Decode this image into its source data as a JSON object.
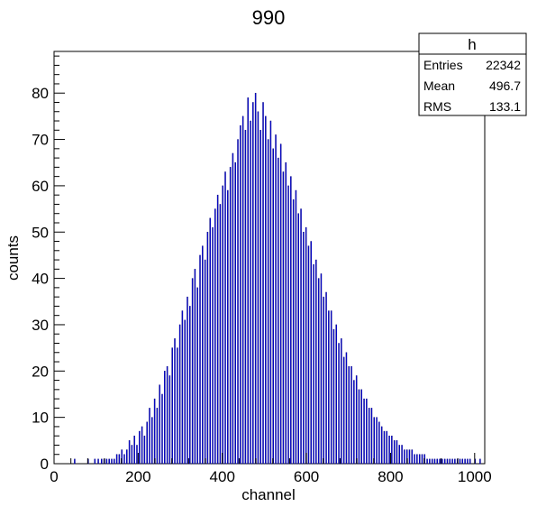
{
  "chart_data": {
    "type": "bar",
    "title": "990",
    "xlabel": "channel",
    "ylabel": "counts",
    "xlim": [
      0,
      1024
    ],
    "ylim": [
      0,
      89
    ],
    "x_ticks": [
      "0",
      "200",
      "400",
      "600",
      "800",
      "1000"
    ],
    "y_ticks": [
      "0",
      "10",
      "20",
      "30",
      "40",
      "50",
      "60",
      "70",
      "80"
    ],
    "grid": false,
    "bar_color": "#0000ff",
    "outline_color": "#000080",
    "series": [
      {
        "bin_width": 1,
        "x": [
          48,
          80,
          96,
          104,
          112,
          118,
          124,
          130,
          136,
          142,
          148,
          154,
          160,
          166,
          172,
          178,
          184,
          190,
          196,
          202,
          208,
          214,
          220,
          226,
          232,
          238,
          244,
          250,
          256,
          262,
          268,
          274,
          280,
          286,
          292,
          298,
          304,
          310,
          316,
          322,
          328,
          334,
          340,
          346,
          352,
          358,
          364,
          370,
          376,
          382,
          388,
          394,
          400,
          406,
          412,
          418,
          424,
          430,
          436,
          442,
          448,
          454,
          460,
          466,
          472,
          478,
          484,
          490,
          496,
          502,
          508,
          514,
          520,
          526,
          532,
          538,
          544,
          550,
          556,
          562,
          568,
          574,
          580,
          586,
          592,
          598,
          604,
          610,
          616,
          622,
          628,
          634,
          640,
          646,
          652,
          658,
          664,
          670,
          676,
          682,
          688,
          694,
          700,
          706,
          712,
          718,
          724,
          730,
          736,
          742,
          748,
          754,
          760,
          766,
          772,
          778,
          784,
          790,
          796,
          802,
          808,
          814,
          820,
          826,
          832,
          838,
          844,
          850,
          856,
          862,
          868,
          874,
          880,
          886,
          892,
          898,
          904,
          910,
          916,
          922,
          928,
          934,
          940,
          946,
          952,
          958,
          964,
          970,
          976,
          982,
          988,
          1000,
          1012
        ],
        "values": [
          1,
          1,
          1,
          1,
          1,
          1,
          1,
          1,
          1,
          1,
          2,
          2,
          3,
          2,
          3,
          5,
          4,
          6,
          4,
          7,
          8,
          6,
          9,
          12,
          10,
          14,
          12,
          17,
          15,
          20,
          21,
          19,
          25,
          27,
          25,
          30,
          33,
          31,
          36,
          34,
          40,
          42,
          38,
          45,
          47,
          44,
          50,
          53,
          51,
          55,
          58,
          56,
          60,
          63,
          59,
          64,
          67,
          65,
          70,
          73,
          75,
          72,
          79,
          74,
          78,
          80,
          76,
          72,
          78,
          75,
          70,
          74,
          68,
          71,
          66,
          69,
          63,
          65,
          60,
          62,
          57,
          59,
          54,
          55,
          50,
          51,
          47,
          48,
          43,
          44,
          40,
          41,
          36,
          37,
          33,
          33,
          29,
          30,
          26,
          27,
          23,
          24,
          21,
          21,
          18,
          19,
          16,
          16,
          14,
          14,
          12,
          12,
          10,
          10,
          9,
          8,
          7,
          7,
          6,
          6,
          5,
          5,
          4,
          4,
          3,
          3,
          3,
          3,
          2,
          2,
          2,
          2,
          2,
          1,
          1,
          1,
          1,
          1,
          1,
          1,
          1,
          1,
          1,
          1,
          1,
          1,
          1,
          1,
          1,
          1,
          1,
          1,
          1
        ]
      }
    ],
    "stats_box": {
      "title": "h",
      "rows": [
        {
          "label": "Entries",
          "value": "22342"
        },
        {
          "label": "Mean",
          "value": "496.7"
        },
        {
          "label": "RMS",
          "value": "133.1"
        }
      ]
    }
  }
}
